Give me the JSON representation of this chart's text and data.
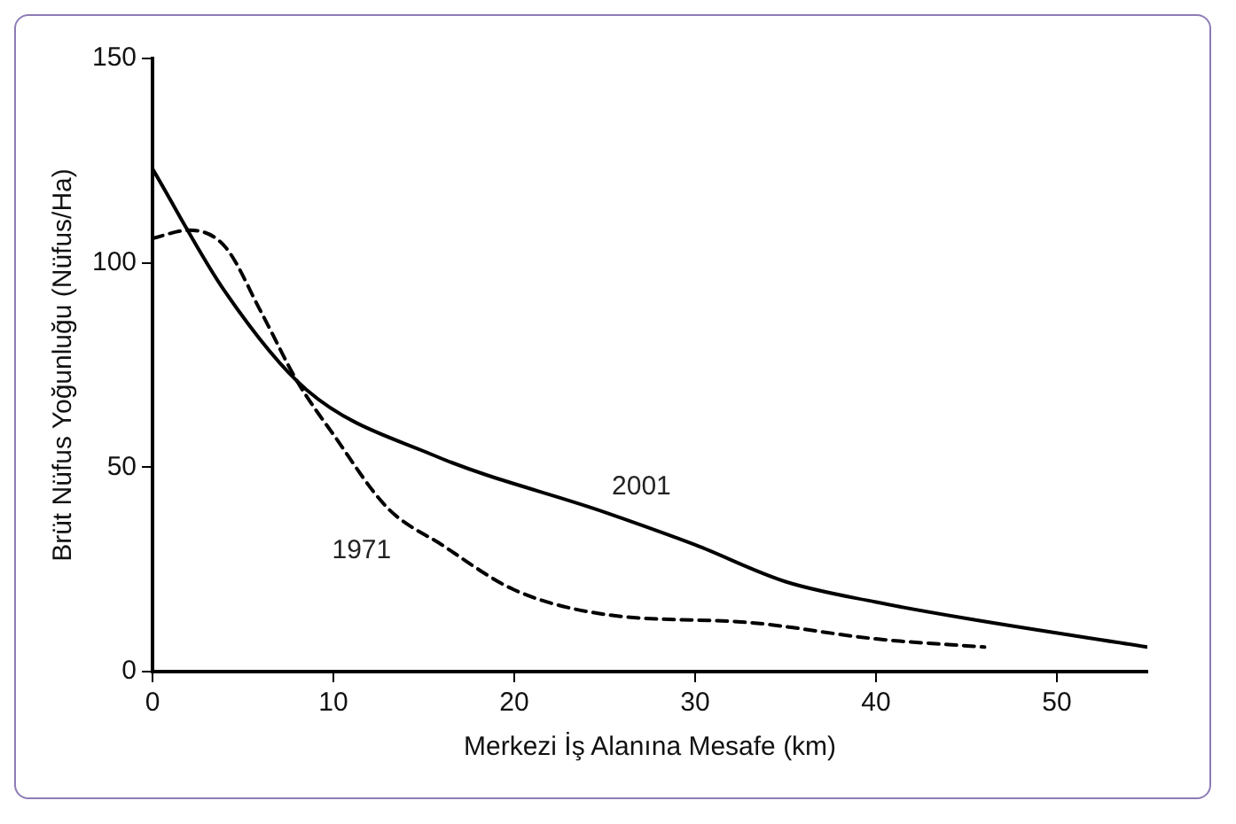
{
  "chart_data": {
    "type": "line",
    "xlabel": "Merkezi İş Alanına Mesafe (km)",
    "ylabel": "Brüt Nüfus Yoğunluğu (Nüfus/Ha)",
    "series": [
      {
        "name": "2001",
        "color": "#000000",
        "line_style": "solid",
        "x": [
          0,
          4,
          8.5,
          15.5,
          25,
          30,
          35,
          40,
          45,
          55
        ],
        "values": [
          123,
          93,
          69,
          53,
          39,
          31,
          22,
          17,
          13,
          6
        ]
      },
      {
        "name": "1971",
        "color": "#000000",
        "line_style": "dashed",
        "x": [
          0,
          2,
          4,
          6,
          8,
          10,
          13,
          16,
          20,
          25,
          33,
          40,
          46
        ],
        "values": [
          106,
          108,
          104,
          88,
          71,
          58,
          40,
          31,
          20,
          14,
          12,
          8,
          6
        ]
      }
    ],
    "xlim": [
      0,
      55
    ],
    "xticks": [
      0,
      10,
      20,
      30,
      40,
      50
    ],
    "ylim": [
      0,
      150
    ],
    "yticks": [
      0,
      50,
      100,
      150
    ],
    "grid": false,
    "legend": false,
    "marker": "none"
  }
}
